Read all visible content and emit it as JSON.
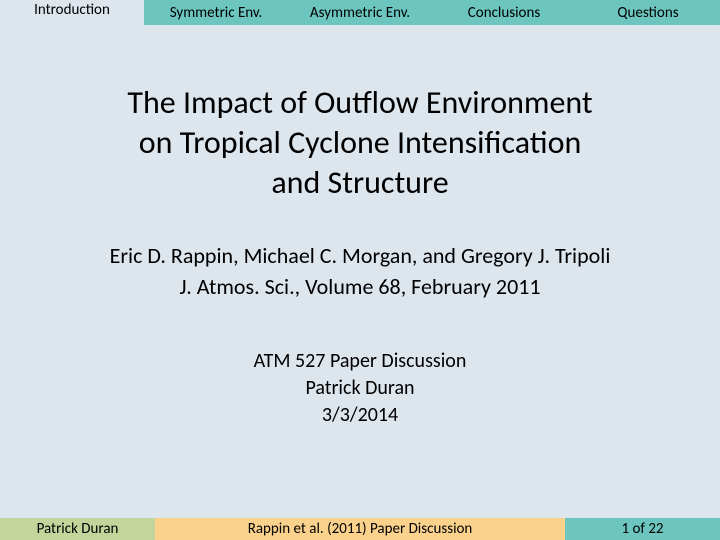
{
  "colors": {
    "nav_active_bg": "#dde5ed",
    "nav_inactive_bg": "#6cc6bf",
    "content_bg": "#dde5ed",
    "footer_left_bg": "#c3d59b",
    "footer_center_bg": "#fbd28b",
    "footer_right_bg": "#6cc6bf",
    "text": "#000000"
  },
  "nav": {
    "items": [
      {
        "label": "Introduction",
        "active": true
      },
      {
        "label": "Symmetric Env.",
        "active": false
      },
      {
        "label": "Asymmetric Env.",
        "active": false
      },
      {
        "label": "Conclusions",
        "active": false
      },
      {
        "label": "Questions",
        "active": false
      }
    ]
  },
  "content": {
    "title_line1": "The Impact of Outflow Environment",
    "title_line2": "on Tropical Cyclone Intensification",
    "title_line3": "and Structure",
    "authors_line1": "Eric D. Rappin, Michael C. Morgan, and Gregory J. Tripoli",
    "authors_line2": "J. Atmos. Sci., Volume 68, February 2011",
    "discussion_line1": "ATM 527 Paper Discussion",
    "discussion_line2": "Patrick Duran",
    "discussion_line3": "3/3/2014"
  },
  "footer": {
    "left": "Patrick Duran",
    "center": "Rappin et al. (2011) Paper Discussion",
    "right": "1 of 22"
  }
}
